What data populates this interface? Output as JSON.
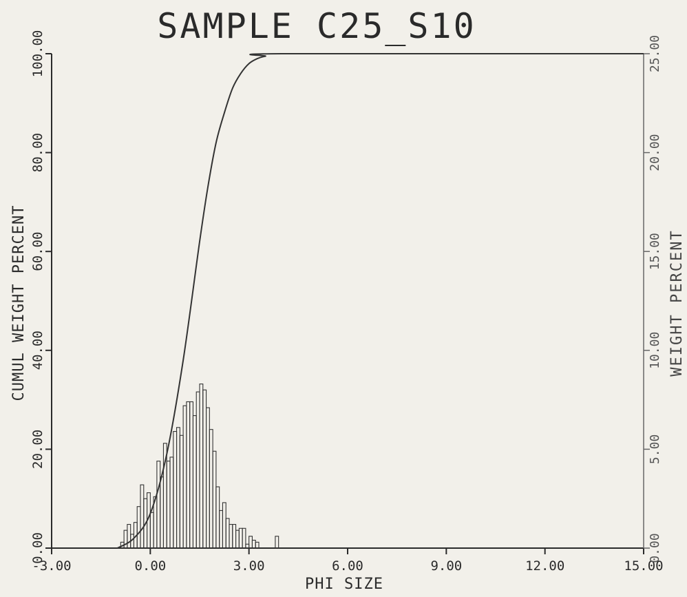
{
  "chart_data": {
    "type": "bar",
    "title": "SAMPLE C25_S10",
    "xlabel": "PHI SIZE",
    "ylabel_left": "CUMUL WEIGHT PERCENT",
    "ylabel_right": "WEIGHT PERCENT",
    "xlim": [
      -3,
      15
    ],
    "ylim_left": [
      0,
      100
    ],
    "ylim_right": [
      0,
      25
    ],
    "x_ticks": [
      "-3.00",
      "0.00",
      "3.00",
      "6.00",
      "9.00",
      "12.00",
      "15.00"
    ],
    "x_tick_values": [
      -3,
      0,
      3,
      6,
      9,
      12,
      15
    ],
    "left_ticks": [
      "0.00",
      "20.00",
      "40.00",
      "60.00",
      "80.00",
      "100.00"
    ],
    "left_tick_values": [
      0,
      20,
      40,
      60,
      80,
      100
    ],
    "right_ticks": [
      "0.00",
      "5.00",
      "10.00",
      "15.00",
      "20.00",
      "25.00"
    ],
    "right_tick_values": [
      0,
      5,
      10,
      15,
      20,
      25
    ],
    "grid": false,
    "histogram": {
      "name": "WEIGHT PERCENT",
      "axis": "right",
      "bin_width": 0.1,
      "bin_start": [
        -0.9,
        -0.8,
        -0.7,
        -0.6,
        -0.5,
        -0.4,
        -0.3,
        -0.2,
        -0.1,
        0.0,
        0.1,
        0.2,
        0.3,
        0.4,
        0.5,
        0.6,
        0.7,
        0.8,
        0.9,
        1.0,
        1.1,
        1.2,
        1.3,
        1.4,
        1.5,
        1.6,
        1.7,
        1.8,
        1.9,
        2.0,
        2.1,
        2.2,
        2.3,
        2.4,
        2.5,
        2.6,
        2.7,
        2.8,
        2.9,
        3.0,
        3.1,
        3.2,
        3.8
      ],
      "values": [
        0.3,
        0.9,
        1.2,
        0.7,
        1.3,
        2.1,
        3.2,
        2.5,
        2.8,
        1.8,
        2.6,
        4.4,
        3.6,
        5.3,
        4.4,
        4.6,
        5.9,
        6.1,
        5.7,
        7.2,
        7.4,
        7.4,
        6.7,
        7.9,
        8.3,
        8.0,
        7.1,
        6.0,
        4.9,
        3.1,
        1.9,
        2.3,
        1.5,
        1.2,
        1.2,
        0.9,
        1.0,
        1.0,
        0.2,
        0.6,
        0.4,
        0.3,
        0.6
      ]
    },
    "cumulative": {
      "name": "CUMUL WEIGHT PERCENT",
      "axis": "left",
      "x": [
        -1.0,
        -0.5,
        0.0,
        0.5,
        1.0,
        1.5,
        1.75,
        2.0,
        2.25,
        2.5,
        2.75,
        3.0,
        3.25,
        3.5,
        4.0,
        15.0
      ],
      "y": [
        0,
        2,
        7,
        19,
        38,
        62,
        73,
        82,
        88,
        93,
        96,
        98,
        99,
        99.5,
        100,
        100
      ]
    }
  }
}
